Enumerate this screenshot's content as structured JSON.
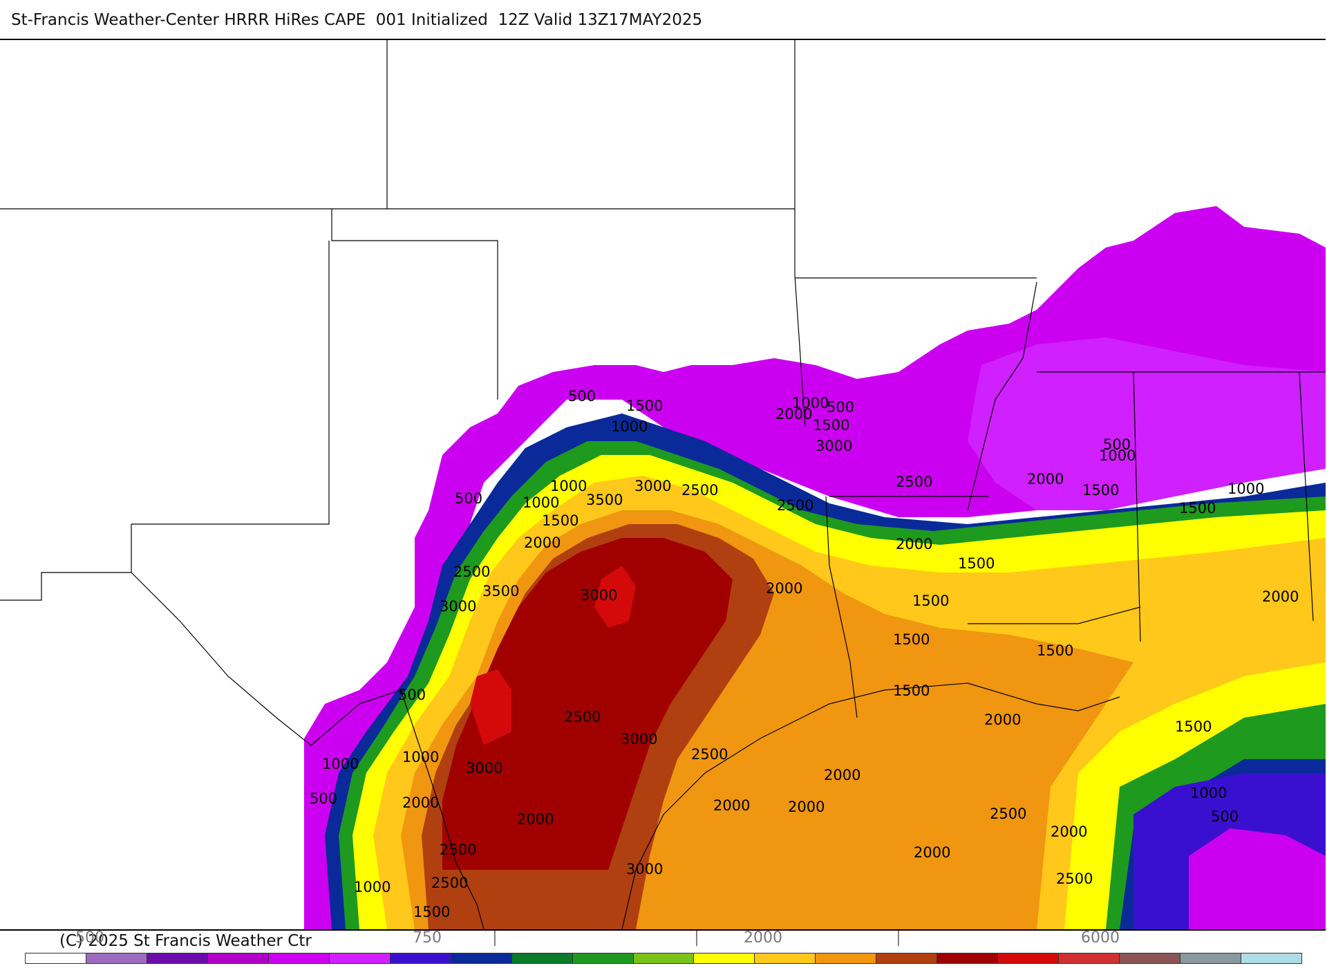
{
  "title": "St-Francis Weather-Center HRRR HiRes CAPE  001 Initialized  12Z Valid 13Z17MAY2025",
  "copyright": "(C) 2025 St Francis Weather Ctr",
  "colorbar": {
    "colors": [
      "#ffffff",
      "#9c6cc0",
      "#6a0dab",
      "#b000c8",
      "#cc00f0",
      "#d020ff",
      "#3a10d0",
      "#0a2a9a",
      "#0c7a2a",
      "#1e9a1e",
      "#7cc21a",
      "#ffff00",
      "#ffc81a",
      "#f09610",
      "#b04010",
      "#a00000",
      "#d40a0a",
      "#d03030",
      "#8a5555",
      "#8899a0",
      "#aedce6"
    ],
    "tick_labels": [
      "500",
      "750",
      "|",
      "|",
      "2000",
      "|",
      "6000"
    ]
  },
  "contour_labels": [
    "500",
    "1500",
    "1000",
    "2000",
    "1000",
    "500",
    "1500",
    "3000",
    "1000",
    "1000",
    "1500",
    "2000",
    "3000",
    "2500",
    "3500",
    "2500",
    "2500",
    "500",
    "1000",
    "1500",
    "2000",
    "500",
    "2000",
    "1000",
    "1500",
    "1500",
    "2500",
    "3500",
    "3000",
    "3000",
    "2000",
    "1500",
    "2000",
    "1500",
    "1500",
    "1500",
    "500",
    "2000",
    "2500",
    "3000",
    "1000",
    "2500",
    "1500",
    "3000",
    "1000",
    "2000",
    "2000",
    "2000",
    "2000",
    "500",
    "2000",
    "2500",
    "2000",
    "1000",
    "2500",
    "2000",
    "500",
    "1000",
    "2500",
    "3000",
    "1500",
    "2500"
  ]
}
